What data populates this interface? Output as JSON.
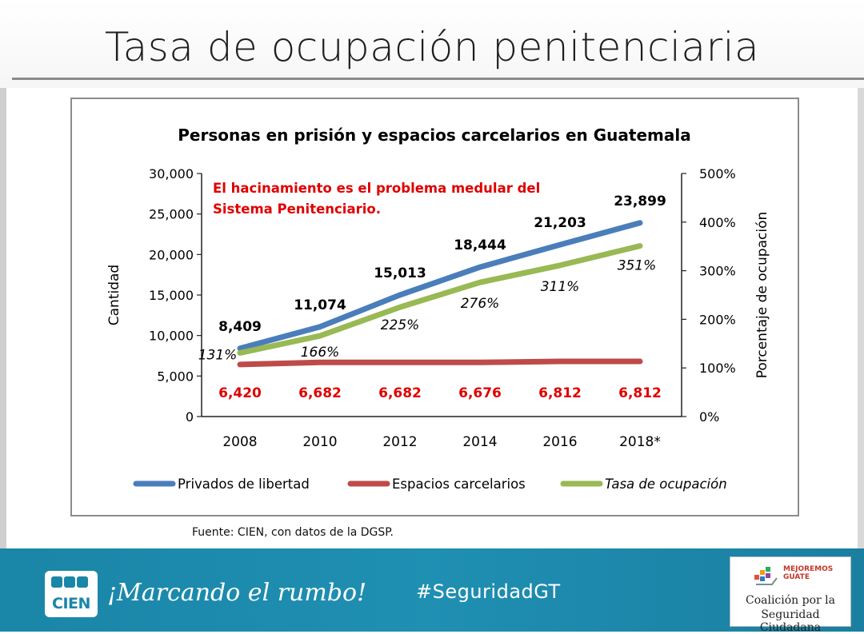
{
  "slide": {
    "title": "Tasa de ocupación penitenciaria",
    "source": "Fuente: CIEN, con datos de la DGSP."
  },
  "footer": {
    "logo_text": "CIEN",
    "slogan": "¡Marcando el rumbo!",
    "hashtag": "#SeguridadGT",
    "partner": {
      "badge_line1": "MEJOREMOS",
      "badge_line2": "GUATE",
      "line1": "Coalición por la",
      "line2": "Seguridad Ciudadana"
    }
  },
  "colors": {
    "privados": "#4a7ebb",
    "espacios": "#be4b48",
    "tasa": "#98b954",
    "annotation": "#e00000"
  },
  "chart_data": {
    "type": "line",
    "title": "Personas en prisión y espacios carcelarios en Guatemala",
    "annotation": [
      "El hacinamiento es el problema medular del",
      "Sistema Penitenciario."
    ],
    "categories": [
      "2008",
      "2010",
      "2012",
      "2014",
      "2016",
      "2018*"
    ],
    "ylabel": "Cantidad",
    "y2label": "Porcentaje de ocupación",
    "ylim": [
      0,
      30000
    ],
    "yticks": [
      0,
      5000,
      10000,
      15000,
      20000,
      25000,
      30000
    ],
    "ytick_labels": [
      "0",
      "5,000",
      "10,000",
      "15,000",
      "20,000",
      "25,000",
      "30,000"
    ],
    "y2lim": [
      0,
      500
    ],
    "y2ticks": [
      0,
      100,
      200,
      300,
      400,
      500
    ],
    "y2tick_labels": [
      "0%",
      "100%",
      "200%",
      "300%",
      "400%",
      "500%"
    ],
    "legend_position": "bottom",
    "series": [
      {
        "name": "Privados de libertad",
        "axis": "left",
        "values": [
          8409,
          11074,
          15013,
          18444,
          21203,
          23899
        ],
        "labels": [
          "8,409",
          "11,074",
          "15,013",
          "18,444",
          "21,203",
          "23,899"
        ]
      },
      {
        "name": "Espacios carcelarios",
        "axis": "left",
        "values": [
          6420,
          6682,
          6682,
          6676,
          6812,
          6812
        ],
        "labels": [
          "6,420",
          "6,682",
          "6,682",
          "6,676",
          "6,812",
          "6,812"
        ]
      },
      {
        "name": "Tasa de ocupación",
        "axis": "right",
        "values": [
          131,
          166,
          225,
          276,
          311,
          351
        ],
        "labels": [
          "131%",
          "166%",
          "225%",
          "276%",
          "311%",
          "351%"
        ]
      }
    ]
  }
}
